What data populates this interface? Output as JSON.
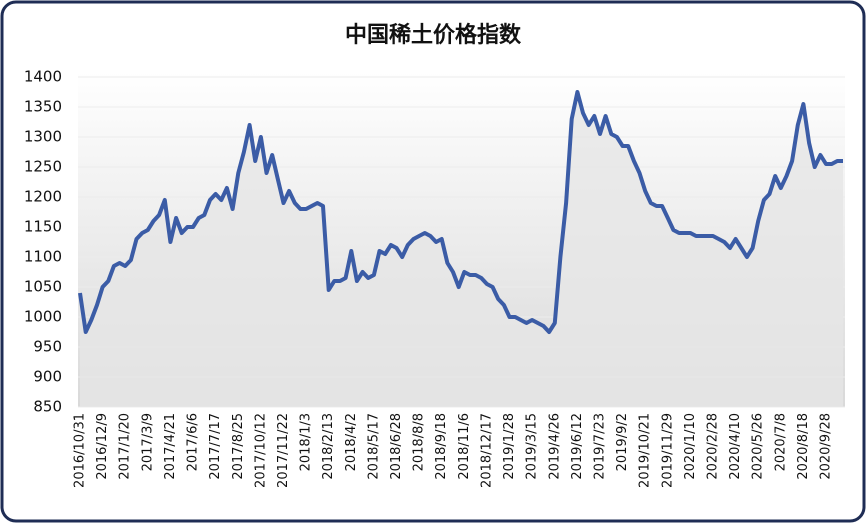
{
  "chart_data": {
    "type": "line",
    "title": "中国稀土价格指数",
    "categories": [
      "2016/10/31",
      null,
      null,
      null,
      "2016/12/9",
      null,
      null,
      null,
      "2017/1/20",
      null,
      null,
      null,
      "2017/3/9",
      null,
      null,
      null,
      "2017/4/21",
      null,
      null,
      null,
      "2017/6/6",
      null,
      null,
      null,
      "2017/7/17",
      null,
      null,
      null,
      "2017/8/25",
      null,
      null,
      null,
      "2017/10/12",
      null,
      null,
      null,
      "2017/11/22",
      null,
      null,
      null,
      "2018/1/3",
      null,
      null,
      null,
      "2018/2/13",
      null,
      null,
      null,
      "2018/4/2",
      null,
      null,
      null,
      "2018/5/17",
      null,
      null,
      null,
      "2018/6/28",
      null,
      null,
      null,
      "2018/8/8",
      null,
      null,
      null,
      "2018/9/18",
      null,
      null,
      null,
      "2018/11/6",
      null,
      null,
      null,
      "2018/12/17",
      null,
      null,
      null,
      "2019/1/28",
      null,
      null,
      null,
      "2019/3/15",
      null,
      null,
      null,
      "2019/4/26",
      null,
      null,
      null,
      "2019/6/12",
      null,
      null,
      null,
      "2019/7/23",
      null,
      null,
      null,
      "2019/9/2",
      null,
      null,
      null,
      "2019/10/21",
      null,
      null,
      null,
      "2019/11/29",
      null,
      null,
      null,
      "2020/1/10",
      null,
      null,
      null,
      "2020/2/28",
      null,
      null,
      null,
      "2020/4/10",
      null,
      null,
      null,
      "2020/5/26",
      null,
      null,
      null,
      "2020/7/8",
      null,
      null,
      null,
      "2020/8/18",
      null,
      null,
      null,
      "2020/9/28",
      null,
      null,
      null
    ],
    "values": [
      1040,
      975,
      995,
      1020,
      1050,
      1060,
      1085,
      1090,
      1085,
      1095,
      1130,
      1140,
      1145,
      1160,
      1170,
      1195,
      1125,
      1165,
      1140,
      1150,
      1150,
      1165,
      1170,
      1195,
      1205,
      1195,
      1215,
      1180,
      1240,
      1275,
      1320,
      1260,
      1300,
      1240,
      1270,
      1230,
      1190,
      1210,
      1190,
      1180,
      1180,
      1185,
      1190,
      1185,
      1045,
      1060,
      1060,
      1065,
      1110,
      1060,
      1075,
      1065,
      1070,
      1110,
      1105,
      1120,
      1115,
      1100,
      1120,
      1130,
      1135,
      1140,
      1135,
      1125,
      1130,
      1090,
      1075,
      1050,
      1075,
      1070,
      1070,
      1065,
      1055,
      1050,
      1030,
      1020,
      1000,
      1000,
      995,
      990,
      995,
      990,
      985,
      975,
      990,
      1100,
      1190,
      1330,
      1375,
      1340,
      1320,
      1335,
      1305,
      1335,
      1305,
      1300,
      1285,
      1285,
      1260,
      1240,
      1210,
      1190,
      1185,
      1185,
      1165,
      1145,
      1140,
      1140,
      1140,
      1135,
      1135,
      1135,
      1135,
      1130,
      1125,
      1115,
      1130,
      1115,
      1100,
      1115,
      1160,
      1195,
      1205,
      1235,
      1215,
      1235,
      1260,
      1320,
      1355,
      1290,
      1250,
      1270,
      1255,
      1255,
      1260,
      1260
    ],
    "color": "#3b5ca6",
    "ylim": [
      850,
      1400
    ],
    "yticks": [
      850,
      900,
      950,
      1000,
      1050,
      1100,
      1150,
      1200,
      1250,
      1300,
      1350,
      1400
    ],
    "grid": true
  }
}
